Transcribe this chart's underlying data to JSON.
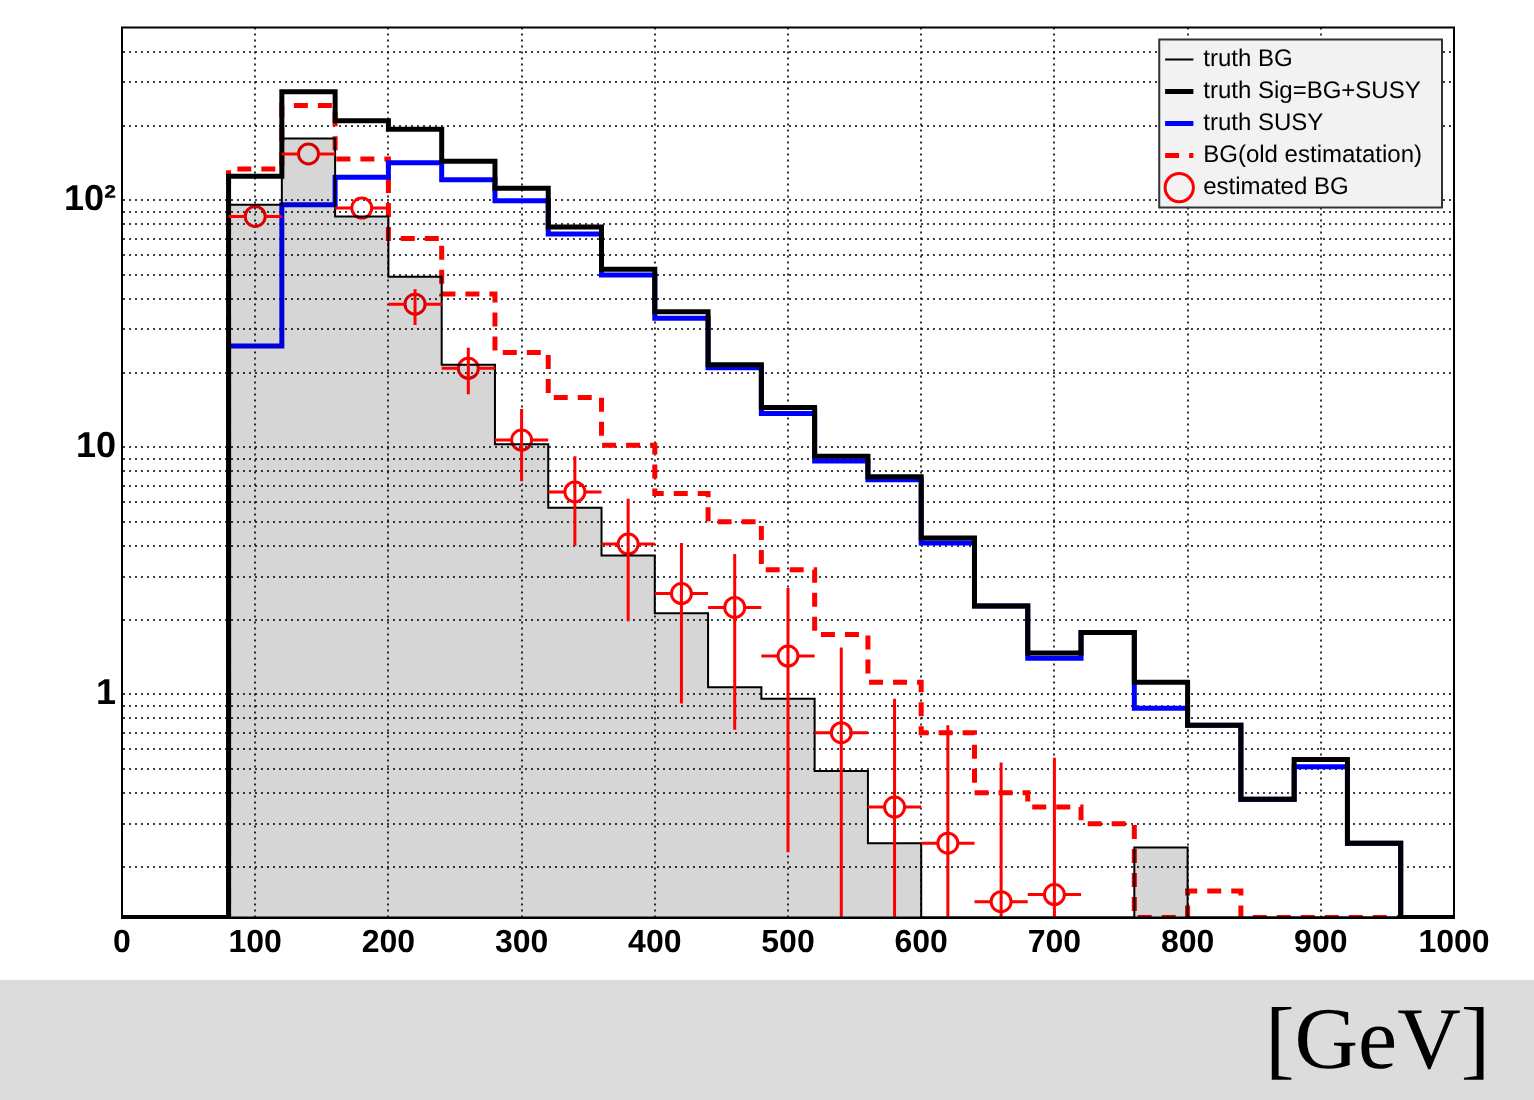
{
  "chart_data": {
    "type": "histogram",
    "xlabel": "[GeV]",
    "log": "y",
    "grid": true,
    "legend": "top right",
    "bins": [
      0,
      40,
      80,
      120,
      160,
      200,
      240,
      280,
      320,
      360,
      400,
      440,
      480,
      520,
      560,
      600,
      640,
      680,
      720,
      760,
      800,
      840,
      880,
      920,
      960,
      1000
    ],
    "xlim": [
      0,
      1000
    ],
    "xticks": [
      0,
      100,
      200,
      300,
      400,
      500,
      600,
      700,
      800,
      900,
      1000
    ],
    "ylim": [
      0.125,
      500
    ],
    "yticks": [
      {
        "value": 0.2,
        "label": null
      },
      {
        "value": 0.3,
        "label": null
      },
      {
        "value": 0.4,
        "label": null
      },
      {
        "value": 0.5,
        "label": null
      },
      {
        "value": 0.6,
        "label": null
      },
      {
        "value": 0.7,
        "label": null
      },
      {
        "value": 0.8,
        "label": null
      },
      {
        "value": 0.9,
        "label": null
      },
      1,
      {
        "value": 2,
        "label": null
      },
      {
        "value": 3,
        "label": null
      },
      {
        "value": 4,
        "label": null
      },
      {
        "value": 5,
        "label": null
      },
      {
        "value": 6,
        "label": null
      },
      {
        "value": 7,
        "label": null
      },
      {
        "value": 8,
        "label": null
      },
      {
        "value": 9,
        "label": null
      },
      10,
      {
        "value": 20,
        "label": null
      },
      {
        "value": 30,
        "label": null
      },
      {
        "value": 40,
        "label": null
      },
      {
        "value": 50,
        "label": null
      },
      {
        "value": 60,
        "label": null
      },
      {
        "value": 70,
        "label": null
      },
      {
        "value": 80,
        "label": null
      },
      {
        "value": 90,
        "label": null
      },
      {
        "value": 100,
        "label": "10²"
      },
      {
        "value": 200,
        "label": null
      },
      {
        "value": 300,
        "label": null
      },
      {
        "value": 400,
        "label": null
      }
    ],
    "series": [
      {
        "name": "truth BG",
        "color": "#000000",
        "values": [
          null,
          null,
          96,
          178,
          86,
          49,
          21.6,
          10.3,
          5.7,
          3.65,
          2.13,
          1.07,
          0.96,
          0.49,
          0.25,
          null,
          null,
          null,
          null,
          0.24,
          null,
          null,
          null,
          null,
          null
        ]
      },
      {
        "name": "truth Sig=BG+SUSY",
        "type": "histogram",
        "color": "#000000",
        "values": [
          null,
          null,
          125,
          275,
          210,
          194,
          144,
          112,
          78,
          52.6,
          35.4,
          21.6,
          14.5,
          9.2,
          7.6,
          4.3,
          2.28,
          1.47,
          1.78,
          1.12,
          0.75,
          0.377,
          0.545,
          0.25,
          null
        ]
      },
      {
        "name": "truth SUSY",
        "type": "histogram",
        "color": "#0000ff",
        "values": [
          null,
          null,
          25.7,
          96,
          124,
          142,
          121,
          99.5,
          73,
          49.8,
          33.3,
          21,
          13.7,
          8.8,
          7.4,
          4.1,
          2.28,
          1.4,
          1.78,
          0.88,
          0.75,
          0.377,
          0.51,
          0.25,
          null
        ]
      },
      {
        "name": "BG(old estimatation)",
        "type": "histogram",
        "color": "#ff0000",
        "line_style": "dashed",
        "values": [
          null,
          null,
          134,
          242,
          147,
          70,
          41.8,
          24.2,
          15.9,
          10.2,
          6.5,
          5.0,
          3.2,
          1.75,
          1.12,
          0.7,
          0.4,
          0.35,
          0.3,
          null,
          0.16,
          null,
          null,
          null,
          null
        ]
      },
      {
        "name": "estimated BG",
        "type": "scatter",
        "color": "#ff0000",
        "marker": "circle",
        "x": [
          100,
          140,
          180,
          220,
          260,
          300,
          340,
          380,
          420,
          460,
          500,
          540,
          580,
          620,
          660,
          700
        ],
        "values": [
          86,
          154,
          93,
          38,
          20.9,
          10.7,
          6.6,
          4.06,
          2.56,
          2.25,
          1.43,
          0.7,
          0.35,
          0.25,
          0.145,
          0.155
        ],
        "errors": [
          null,
          null,
          null,
          [
            31.3,
            43.7
          ],
          [
            16.4,
            25.3
          ],
          [
            7.3,
            14.3
          ],
          [
            4.0,
            9.2
          ],
          [
            1.98,
            6.2
          ],
          [
            0.92,
            4.1
          ],
          [
            0.72,
            3.7
          ],
          [
            0.23,
            2.7
          ],
          [
            0.125,
            1.55
          ],
          [
            0.125,
            0.96
          ],
          [
            0.125,
            0.75
          ],
          [
            0.125,
            0.53
          ],
          [
            0.125,
            0.555
          ]
        ],
        "xerrors": [
          20,
          20,
          20,
          20,
          20,
          20,
          20,
          20,
          20,
          20,
          20,
          20,
          20,
          20,
          20,
          20
        ]
      }
    ]
  }
}
